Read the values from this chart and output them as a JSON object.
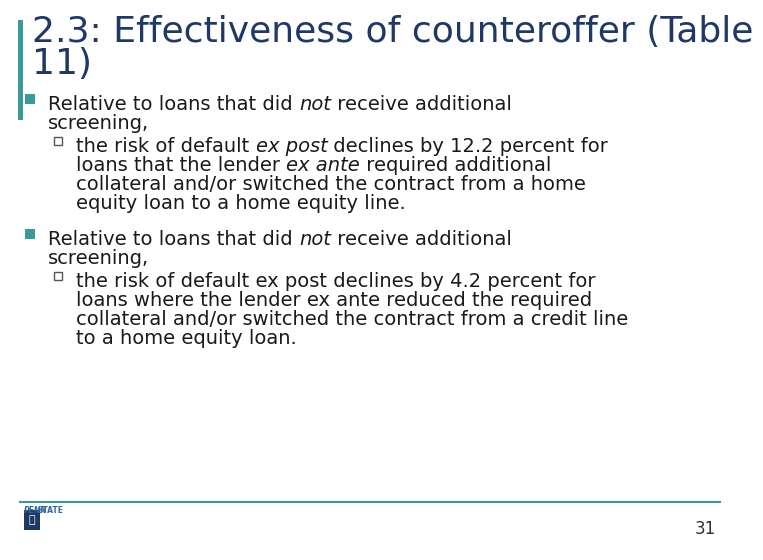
{
  "title_line1": "2.3: Effectiveness of counteroffer (Table",
  "title_line2": "11)",
  "title_color": "#1F3864",
  "title_fontsize": 26,
  "accent_color": "#2E75B6",
  "teal_color": "#2E8B8B",
  "bullet_color": "#3A9999",
  "body_fontsize": 14,
  "background_color": "#FFFFFF",
  "left_bar_color": "#3A9999",
  "page_number": "31",
  "footer_line_color": "#3A9999",
  "text_color": "#1a1a1a"
}
